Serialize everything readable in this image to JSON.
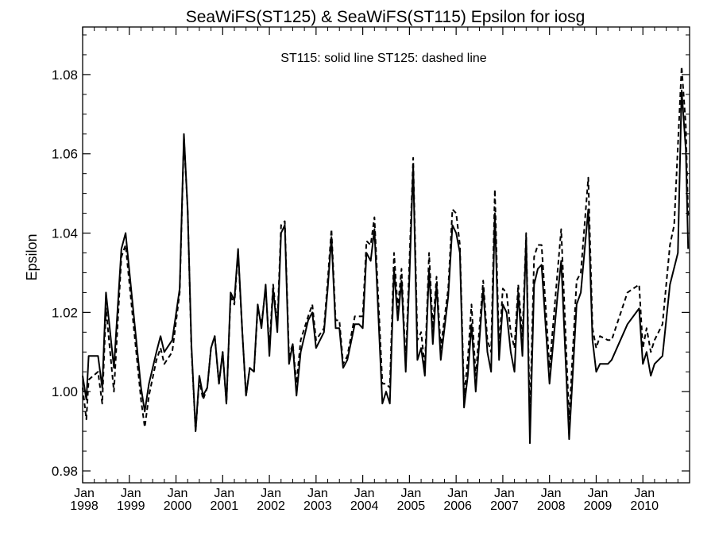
{
  "chart_data": {
    "type": "line",
    "title": "SeaWiFS(ST125) & SeaWiFS(ST115)  Epsilon for iosg",
    "annotation": "ST115: solid line   ST125: dashed line",
    "ylabel": "Epsilon",
    "xlabel": "",
    "xlim": [
      1998.0,
      2011.0
    ],
    "ylim": [
      0.977,
      1.092
    ],
    "x_ticks": [
      {
        "value": 1998,
        "month": "Jan",
        "year": "1998"
      },
      {
        "value": 1999,
        "month": "Jan",
        "year": "1999"
      },
      {
        "value": 2000,
        "month": "Jan",
        "year": "2000"
      },
      {
        "value": 2001,
        "month": "Jan",
        "year": "2001"
      },
      {
        "value": 2002,
        "month": "Jan",
        "year": "2002"
      },
      {
        "value": 2003,
        "month": "Jan",
        "year": "2003"
      },
      {
        "value": 2004,
        "month": "Jan",
        "year": "2004"
      },
      {
        "value": 2005,
        "month": "Jan",
        "year": "2005"
      },
      {
        "value": 2006,
        "month": "Jan",
        "year": "2006"
      },
      {
        "value": 2007,
        "month": "Jan",
        "year": "2007"
      },
      {
        "value": 2008,
        "month": "Jan",
        "year": "2008"
      },
      {
        "value": 2009,
        "month": "Jan",
        "year": "2009"
      },
      {
        "value": 2010,
        "month": "Jan",
        "year": "2010"
      }
    ],
    "y_ticks": [
      {
        "value": 0.98,
        "label": "0.98"
      },
      {
        "value": 1.0,
        "label": "1.00"
      },
      {
        "value": 1.02,
        "label": "1.02"
      },
      {
        "value": 1.04,
        "label": "1.04"
      },
      {
        "value": 1.06,
        "label": "1.06"
      },
      {
        "value": 1.08,
        "label": "1.08"
      }
    ],
    "series": [
      {
        "name": "ST115",
        "style": "solid",
        "points": [
          [
            1998.0,
            1.004
          ],
          [
            1998.08,
            0.998
          ],
          [
            1998.13,
            1.009
          ],
          [
            1998.33,
            1.009
          ],
          [
            1998.42,
            1.001
          ],
          [
            1998.5,
            1.025
          ],
          [
            1998.67,
            1.006
          ],
          [
            1998.83,
            1.036
          ],
          [
            1998.92,
            1.04
          ],
          [
            1999.08,
            1.021
          ],
          [
            1999.25,
            1.001
          ],
          [
            1999.33,
            0.995
          ],
          [
            1999.42,
            1.002
          ],
          [
            1999.58,
            1.01
          ],
          [
            1999.67,
            1.014
          ],
          [
            1999.75,
            1.01
          ],
          [
            1999.92,
            1.013
          ],
          [
            2000.08,
            1.026
          ],
          [
            2000.17,
            1.065
          ],
          [
            2000.25,
            1.046
          ],
          [
            2000.33,
            1.012
          ],
          [
            2000.42,
            0.99
          ],
          [
            2000.5,
            1.004
          ],
          [
            2000.58,
            0.999
          ],
          [
            2000.67,
            1.001
          ],
          [
            2000.75,
            1.011
          ],
          [
            2000.83,
            1.014
          ],
          [
            2000.92,
            1.002
          ],
          [
            2001.0,
            1.01
          ],
          [
            2001.08,
            0.997
          ],
          [
            2001.17,
            1.025
          ],
          [
            2001.25,
            1.023
          ],
          [
            2001.33,
            1.036
          ],
          [
            2001.42,
            1.015
          ],
          [
            2001.5,
            0.999
          ],
          [
            2001.58,
            1.006
          ],
          [
            2001.67,
            1.005
          ],
          [
            2001.75,
            1.022
          ],
          [
            2001.83,
            1.016
          ],
          [
            2001.92,
            1.027
          ],
          [
            2002.0,
            1.009
          ],
          [
            2002.08,
            1.026
          ],
          [
            2002.17,
            1.015
          ],
          [
            2002.25,
            1.04
          ],
          [
            2002.33,
            1.042
          ],
          [
            2002.42,
            1.007
          ],
          [
            2002.5,
            1.012
          ],
          [
            2002.58,
            0.999
          ],
          [
            2002.67,
            1.01
          ],
          [
            2002.83,
            1.018
          ],
          [
            2002.92,
            1.02
          ],
          [
            2003.0,
            1.011
          ],
          [
            2003.17,
            1.015
          ],
          [
            2003.25,
            1.026
          ],
          [
            2003.33,
            1.039
          ],
          [
            2003.42,
            1.016
          ],
          [
            2003.5,
            1.016
          ],
          [
            2003.58,
            1.006
          ],
          [
            2003.67,
            1.008
          ],
          [
            2003.83,
            1.017
          ],
          [
            2003.92,
            1.017
          ],
          [
            2004.0,
            1.016
          ],
          [
            2004.08,
            1.035
          ],
          [
            2004.17,
            1.033
          ],
          [
            2004.25,
            1.041
          ],
          [
            2004.42,
            0.997
          ],
          [
            2004.5,
            1.0
          ],
          [
            2004.58,
            0.997
          ],
          [
            2004.67,
            1.031
          ],
          [
            2004.75,
            1.018
          ],
          [
            2004.83,
            1.028
          ],
          [
            2004.92,
            1.005
          ],
          [
            2005.0,
            1.029
          ],
          [
            2005.08,
            1.057
          ],
          [
            2005.17,
            1.008
          ],
          [
            2005.25,
            1.011
          ],
          [
            2005.33,
            1.004
          ],
          [
            2005.42,
            1.031
          ],
          [
            2005.5,
            1.012
          ],
          [
            2005.58,
            1.027
          ],
          [
            2005.67,
            1.008
          ],
          [
            2005.83,
            1.024
          ],
          [
            2005.92,
            1.042
          ],
          [
            2006.0,
            1.04
          ],
          [
            2006.08,
            1.035
          ],
          [
            2006.17,
            0.996
          ],
          [
            2006.25,
            1.004
          ],
          [
            2006.33,
            1.017
          ],
          [
            2006.42,
            1.0
          ],
          [
            2006.58,
            1.026
          ],
          [
            2006.67,
            1.01
          ],
          [
            2006.75,
            1.005
          ],
          [
            2006.83,
            1.045
          ],
          [
            2006.92,
            1.008
          ],
          [
            2007.0,
            1.022
          ],
          [
            2007.08,
            1.02
          ],
          [
            2007.17,
            1.01
          ],
          [
            2007.25,
            1.005
          ],
          [
            2007.33,
            1.025
          ],
          [
            2007.42,
            1.009
          ],
          [
            2007.5,
            1.039
          ],
          [
            2007.58,
            0.987
          ],
          [
            2007.67,
            1.027
          ],
          [
            2007.75,
            1.031
          ],
          [
            2007.83,
            1.032
          ],
          [
            2007.92,
            1.016
          ],
          [
            2008.0,
            1.002
          ],
          [
            2008.17,
            1.024
          ],
          [
            2008.25,
            1.033
          ],
          [
            2008.42,
            0.988
          ],
          [
            2008.58,
            1.022
          ],
          [
            2008.67,
            1.025
          ],
          [
            2008.83,
            1.046
          ],
          [
            2008.92,
            1.013
          ],
          [
            2009.0,
            1.005
          ],
          [
            2009.08,
            1.007
          ],
          [
            2009.25,
            1.007
          ],
          [
            2009.33,
            1.008
          ],
          [
            2009.67,
            1.017
          ],
          [
            2009.92,
            1.021
          ],
          [
            2010.0,
            1.007
          ],
          [
            2010.08,
            1.01
          ],
          [
            2010.17,
            1.004
          ],
          [
            2010.25,
            1.007
          ],
          [
            2010.42,
            1.009
          ],
          [
            2010.58,
            1.027
          ],
          [
            2010.75,
            1.035
          ],
          [
            2010.83,
            1.076
          ],
          [
            2010.92,
            1.061
          ],
          [
            2010.97,
            1.036
          ]
        ]
      },
      {
        "name": "ST125",
        "style": "dashed",
        "points": [
          [
            1998.0,
            1.001
          ],
          [
            1998.08,
            0.993
          ],
          [
            1998.13,
            1.003
          ],
          [
            1998.33,
            1.005
          ],
          [
            1998.42,
            0.997
          ],
          [
            1998.5,
            1.021
          ],
          [
            1998.67,
            1.0
          ],
          [
            1998.83,
            1.034
          ],
          [
            1998.92,
            1.037
          ],
          [
            1999.08,
            1.018
          ],
          [
            1999.25,
            0.998
          ],
          [
            1999.33,
            0.991
          ],
          [
            1999.42,
            0.999
          ],
          [
            1999.58,
            1.008
          ],
          [
            1999.67,
            1.011
          ],
          [
            1999.75,
            1.007
          ],
          [
            1999.92,
            1.01
          ],
          [
            2000.08,
            1.025
          ],
          [
            2000.17,
            1.064
          ],
          [
            2000.25,
            1.046
          ],
          [
            2000.33,
            1.011
          ],
          [
            2000.42,
            0.99
          ],
          [
            2000.5,
            1.003
          ],
          [
            2000.58,
            0.998
          ],
          [
            2000.67,
            1.001
          ],
          [
            2000.75,
            1.011
          ],
          [
            2000.83,
            1.014
          ],
          [
            2000.92,
            1.002
          ],
          [
            2001.0,
            1.01
          ],
          [
            2001.08,
            0.997
          ],
          [
            2001.17,
            1.024
          ],
          [
            2001.25,
            1.022
          ],
          [
            2001.33,
            1.035
          ],
          [
            2001.42,
            1.015
          ],
          [
            2001.5,
            0.999
          ],
          [
            2001.58,
            1.006
          ],
          [
            2001.67,
            1.005
          ],
          [
            2001.75,
            1.021
          ],
          [
            2001.83,
            1.017
          ],
          [
            2001.92,
            1.026
          ],
          [
            2002.0,
            1.011
          ],
          [
            2002.08,
            1.027
          ],
          [
            2002.17,
            1.017
          ],
          [
            2002.25,
            1.042
          ],
          [
            2002.33,
            1.043
          ],
          [
            2002.42,
            1.009
          ],
          [
            2002.5,
            1.012
          ],
          [
            2002.58,
            1.002
          ],
          [
            2002.67,
            1.013
          ],
          [
            2002.83,
            1.019
          ],
          [
            2002.92,
            1.022
          ],
          [
            2003.0,
            1.013
          ],
          [
            2003.17,
            1.016
          ],
          [
            2003.25,
            1.028
          ],
          [
            2003.33,
            1.041
          ],
          [
            2003.42,
            1.018
          ],
          [
            2003.5,
            1.018
          ],
          [
            2003.58,
            1.007
          ],
          [
            2003.67,
            1.009
          ],
          [
            2003.83,
            1.019
          ],
          [
            2003.92,
            1.019
          ],
          [
            2004.0,
            1.019
          ],
          [
            2004.08,
            1.038
          ],
          [
            2004.17,
            1.037
          ],
          [
            2004.25,
            1.044
          ],
          [
            2004.42,
            1.002
          ],
          [
            2004.5,
            1.002
          ],
          [
            2004.58,
            1.001
          ],
          [
            2004.67,
            1.035
          ],
          [
            2004.75,
            1.021
          ],
          [
            2004.83,
            1.031
          ],
          [
            2004.92,
            1.007
          ],
          [
            2005.0,
            1.033
          ],
          [
            2005.08,
            1.059
          ],
          [
            2005.17,
            1.013
          ],
          [
            2005.25,
            1.015
          ],
          [
            2005.33,
            1.006
          ],
          [
            2005.42,
            1.035
          ],
          [
            2005.5,
            1.016
          ],
          [
            2005.58,
            1.029
          ],
          [
            2005.67,
            1.011
          ],
          [
            2005.83,
            1.026
          ],
          [
            2005.92,
            1.046
          ],
          [
            2006.0,
            1.045
          ],
          [
            2006.08,
            1.037
          ],
          [
            2006.17,
            0.999
          ],
          [
            2006.25,
            1.008
          ],
          [
            2006.33,
            1.022
          ],
          [
            2006.42,
            1.004
          ],
          [
            2006.58,
            1.028
          ],
          [
            2006.67,
            1.013
          ],
          [
            2006.75,
            1.01
          ],
          [
            2006.83,
            1.051
          ],
          [
            2006.92,
            1.011
          ],
          [
            2007.0,
            1.026
          ],
          [
            2007.08,
            1.025
          ],
          [
            2007.17,
            1.015
          ],
          [
            2007.25,
            1.011
          ],
          [
            2007.33,
            1.027
          ],
          [
            2007.42,
            1.014
          ],
          [
            2007.5,
            1.04
          ],
          [
            2007.58,
            0.993
          ],
          [
            2007.67,
            1.034
          ],
          [
            2007.75,
            1.037
          ],
          [
            2007.83,
            1.037
          ],
          [
            2007.92,
            1.021
          ],
          [
            2008.0,
            1.006
          ],
          [
            2008.17,
            1.03
          ],
          [
            2008.25,
            1.041
          ],
          [
            2008.42,
            0.993
          ],
          [
            2008.58,
            1.028
          ],
          [
            2008.67,
            1.03
          ],
          [
            2008.83,
            1.054
          ],
          [
            2008.92,
            1.016
          ],
          [
            2009.0,
            1.011
          ],
          [
            2009.08,
            1.014
          ],
          [
            2009.25,
            1.013
          ],
          [
            2009.33,
            1.013
          ],
          [
            2009.67,
            1.025
          ],
          [
            2009.92,
            1.027
          ],
          [
            2010.0,
            1.011
          ],
          [
            2010.08,
            1.016
          ],
          [
            2010.17,
            1.01
          ],
          [
            2010.25,
            1.013
          ],
          [
            2010.42,
            1.017
          ],
          [
            2010.58,
            1.037
          ],
          [
            2010.67,
            1.042
          ],
          [
            2010.83,
            1.082
          ],
          [
            2010.92,
            1.067
          ],
          [
            2010.97,
            1.044
          ]
        ]
      }
    ]
  }
}
